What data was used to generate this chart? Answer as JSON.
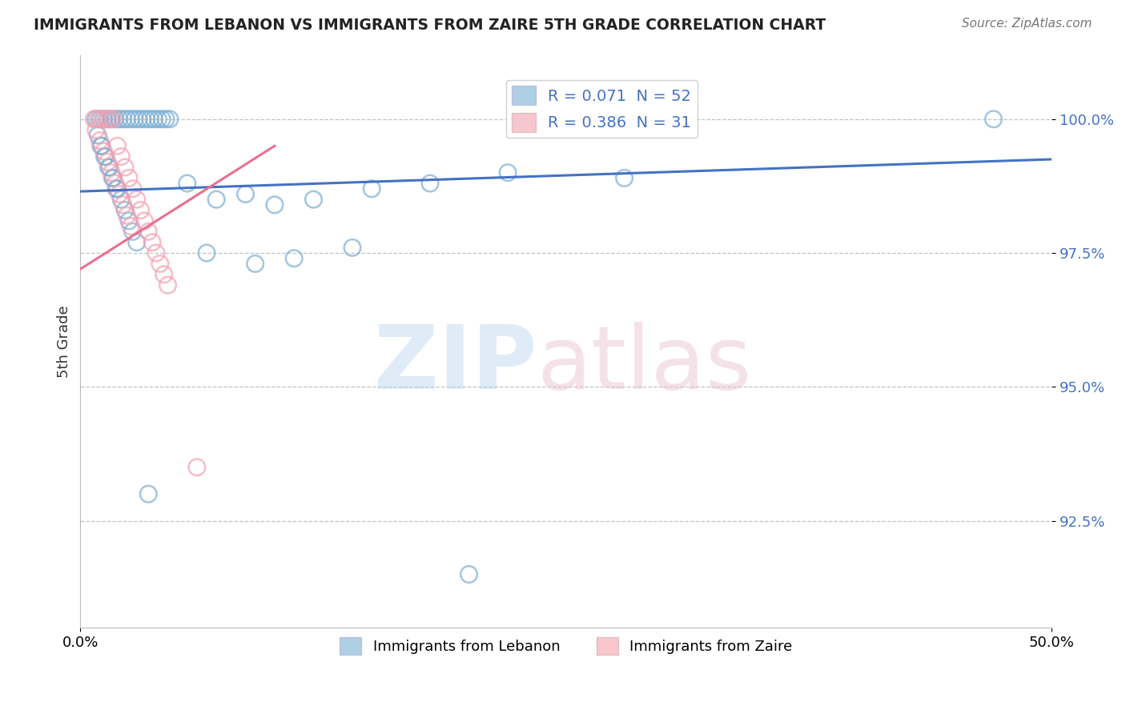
{
  "title": "IMMIGRANTS FROM LEBANON VS IMMIGRANTS FROM ZAIRE 5TH GRADE CORRELATION CHART",
  "source": "Source: ZipAtlas.com",
  "ylabel": "5th Grade",
  "y_ticks": [
    92.5,
    95.0,
    97.5,
    100.0
  ],
  "y_tick_labels": [
    "92.5%",
    "95.0%",
    "97.5%",
    "100.0%"
  ],
  "xlim": [
    0.0,
    50.0
  ],
  "ylim": [
    90.5,
    101.2
  ],
  "legend_r1": "R = 0.071  N = 52",
  "legend_r2": "R = 0.386  N = 31",
  "legend_label1": "Immigrants from Lebanon",
  "legend_label2": "Immigrants from Zaire",
  "blue_color": "#7bafd4",
  "pink_color": "#f4a0b0",
  "blue_line_color": "#4472c4",
  "pink_line_color": "#e87090",
  "title_color": "#222222",
  "source_color": "#777777",
  "blue_x": [
    0.8,
    1.0,
    1.2,
    1.4,
    1.6,
    1.8,
    2.0,
    2.2,
    2.4,
    2.6,
    2.8,
    3.0,
    3.2,
    3.4,
    3.6,
    3.8,
    4.0,
    4.2,
    4.4,
    4.6,
    1.1,
    1.3,
    1.5,
    1.7,
    1.9,
    2.1,
    2.3,
    2.5,
    2.7,
    2.9,
    5.5,
    7.0,
    8.5,
    10.0,
    12.0,
    15.0,
    18.0,
    22.0,
    28.0,
    0.9,
    1.05,
    1.25,
    1.45,
    1.65,
    1.85,
    6.5,
    9.0,
    11.0,
    14.0,
    47.0,
    3.5,
    20.0
  ],
  "blue_y": [
    100.0,
    100.0,
    100.0,
    100.0,
    100.0,
    100.0,
    100.0,
    100.0,
    100.0,
    100.0,
    100.0,
    100.0,
    100.0,
    100.0,
    100.0,
    100.0,
    100.0,
    100.0,
    100.0,
    100.0,
    99.5,
    99.3,
    99.1,
    98.9,
    98.7,
    98.5,
    98.3,
    98.1,
    97.9,
    97.7,
    98.8,
    98.5,
    98.6,
    98.4,
    98.5,
    98.7,
    98.8,
    99.0,
    98.9,
    99.7,
    99.5,
    99.3,
    99.1,
    98.9,
    98.7,
    97.5,
    97.3,
    97.4,
    97.6,
    100.0,
    93.0,
    91.5
  ],
  "pink_x": [
    0.7,
    0.9,
    1.1,
    1.3,
    1.5,
    1.7,
    1.9,
    2.1,
    2.3,
    2.5,
    2.7,
    2.9,
    3.1,
    3.3,
    3.5,
    3.7,
    3.9,
    4.1,
    4.3,
    4.5,
    0.8,
    1.0,
    1.2,
    1.4,
    1.6,
    1.8,
    2.0,
    2.2,
    2.4,
    2.6,
    6.0
  ],
  "pink_y": [
    100.0,
    100.0,
    100.0,
    100.0,
    100.0,
    100.0,
    99.5,
    99.3,
    99.1,
    98.9,
    98.7,
    98.5,
    98.3,
    98.1,
    97.9,
    97.7,
    97.5,
    97.3,
    97.1,
    96.9,
    99.8,
    99.6,
    99.4,
    99.2,
    99.0,
    98.8,
    98.6,
    98.4,
    98.2,
    98.0,
    93.5
  ],
  "blue_trend_x": [
    0.0,
    50.0
  ],
  "blue_trend_y": [
    98.65,
    99.25
  ],
  "pink_trend_x": [
    0.0,
    10.0
  ],
  "pink_trend_y": [
    97.2,
    99.5
  ]
}
